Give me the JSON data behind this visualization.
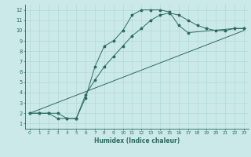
{
  "xlabel": "Humidex (Indice chaleur)",
  "bg_color": "#cce9e9",
  "grid_color": "#b0d8d8",
  "line_color": "#2a6b5e",
  "xlim": [
    -0.5,
    23.5
  ],
  "ylim": [
    0.5,
    12.5
  ],
  "xticks": [
    0,
    1,
    2,
    3,
    4,
    5,
    6,
    7,
    8,
    9,
    10,
    11,
    12,
    13,
    14,
    15,
    16,
    17,
    18,
    19,
    20,
    21,
    22,
    23
  ],
  "yticks": [
    1,
    2,
    3,
    4,
    5,
    6,
    7,
    8,
    9,
    10,
    11,
    12
  ],
  "line1_x": [
    0,
    1,
    2,
    3,
    4,
    5,
    5,
    6,
    7,
    8,
    9,
    10,
    11,
    12,
    13,
    14,
    15,
    16,
    17,
    22,
    23
  ],
  "line1_y": [
    2,
    2,
    2,
    1.5,
    1.5,
    1.5,
    1.5,
    3.5,
    6.5,
    8.5,
    9.0,
    10.0,
    11.5,
    12.0,
    12.0,
    12.0,
    11.8,
    10.5,
    9.8,
    10.2,
    10.2
  ],
  "line2_x": [
    0,
    1,
    2,
    3,
    4,
    5,
    6,
    7,
    8,
    9,
    10,
    11,
    12,
    13,
    14,
    15,
    16,
    17,
    18,
    19,
    20,
    21,
    22,
    23
  ],
  "line2_y": [
    2,
    2,
    2,
    2,
    1.5,
    1.5,
    3.8,
    5.2,
    6.5,
    7.5,
    8.5,
    9.5,
    10.2,
    11.0,
    11.5,
    11.7,
    11.5,
    11.0,
    10.5,
    10.2,
    10.0,
    10.0,
    10.2,
    10.2
  ],
  "line3_x": [
    0,
    23
  ],
  "line3_y": [
    2,
    10
  ]
}
